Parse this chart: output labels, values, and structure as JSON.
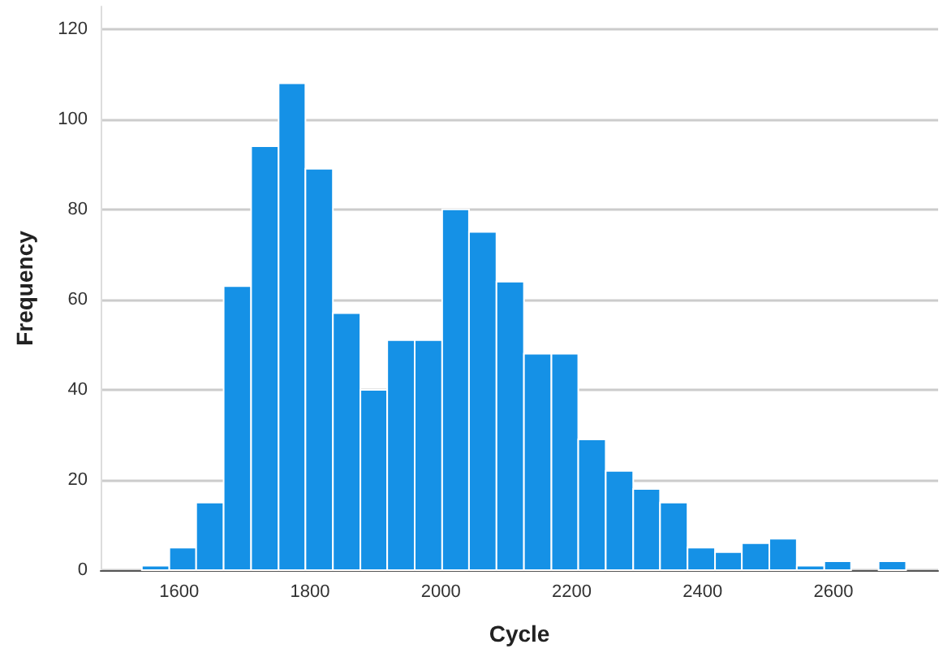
{
  "chart_data": {
    "type": "histogram",
    "xlabel": "Cycle",
    "ylabel": "Frequency",
    "bins": [
      1543,
      1585,
      1626,
      1668,
      1710,
      1752,
      1793,
      1835,
      1877,
      1918,
      1960,
      2002,
      2043,
      2085,
      2127,
      2169,
      2210,
      2252,
      2294,
      2335,
      2377,
      2419,
      2460,
      2502,
      2544,
      2586,
      2627,
      2669,
      2711
    ],
    "values": [
      1,
      5,
      15,
      63,
      94,
      108,
      89,
      57,
      40,
      51,
      51,
      80,
      75,
      64,
      48,
      48,
      29,
      22,
      18,
      15,
      5,
      4,
      6,
      7,
      1,
      2,
      0,
      2
    ],
    "color": "#1591e6",
    "xlim": [
      1480,
      2760
    ],
    "xticks": [
      1600,
      1800,
      2000,
      2200,
      2400,
      2600
    ],
    "ylim": [
      0,
      125
    ],
    "yticks": [
      0,
      20,
      40,
      60,
      80,
      100,
      120
    ],
    "grid": "y"
  }
}
